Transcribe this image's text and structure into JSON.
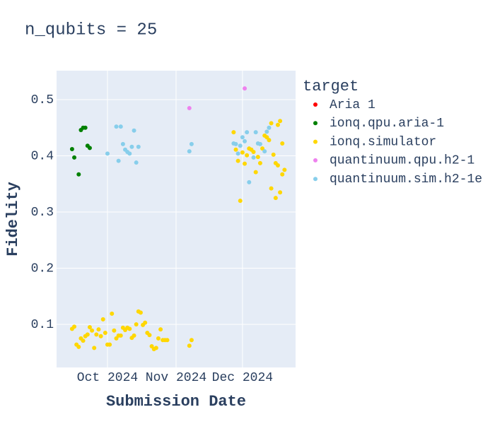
{
  "chart_data": {
    "type": "scatter",
    "title": "n_qubits = 25",
    "x_label": "Submission Date",
    "y_label": "Fidelity",
    "legend_title": "target",
    "legend": "right",
    "grid": true,
    "xlim": [
      "2024-09-08",
      "2024-12-25"
    ],
    "xticks": [
      {
        "value": "2024-10-01",
        "label": "Oct 2024"
      },
      {
        "value": "2024-11-01",
        "label": "Nov 2024"
      },
      {
        "value": "2024-12-01",
        "label": "Dec 2024"
      }
    ],
    "ylim": [
      0.0233,
      0.5516
    ],
    "yticks": [
      0.1,
      0.2,
      0.3,
      0.4,
      0.5
    ],
    "series": [
      {
        "name": "Aria 1",
        "color": "#ff0000",
        "x": [],
        "values": []
      },
      {
        "name": "ionq.qpu.aria-1",
        "color": "#008000",
        "x": [
          "2024-09-15",
          "2024-09-16",
          "2024-09-18",
          "2024-09-19",
          "2024-09-20",
          "2024-09-21",
          "2024-09-22",
          "2024-09-23"
        ],
        "values": [
          0.412,
          0.397,
          0.367,
          0.446,
          0.45,
          0.45,
          0.418,
          0.414
        ]
      },
      {
        "name": "ionq.simulator",
        "color": "#ffd700",
        "x": [
          "2024-09-15",
          "2024-09-16",
          "2024-09-17",
          "2024-09-18",
          "2024-09-19",
          "2024-09-20",
          "2024-09-21",
          "2024-09-22",
          "2024-09-23",
          "2024-09-24",
          "2024-09-25",
          "2024-09-26",
          "2024-09-27",
          "2024-09-28",
          "2024-09-29",
          "2024-09-30",
          "2024-10-01",
          "2024-10-02",
          "2024-10-03",
          "2024-10-04",
          "2024-10-05",
          "2024-10-06",
          "2024-10-07",
          "2024-10-08",
          "2024-10-09",
          "2024-10-10",
          "2024-10-11",
          "2024-10-12",
          "2024-10-13",
          "2024-10-14",
          "2024-10-15",
          "2024-10-16",
          "2024-10-17",
          "2024-10-18",
          "2024-10-19",
          "2024-10-20",
          "2024-10-21",
          "2024-10-22",
          "2024-10-23",
          "2024-10-24",
          "2024-10-25",
          "2024-10-26",
          "2024-10-27",
          "2024-10-28",
          "2024-11-07",
          "2024-11-08",
          "2024-11-27",
          "2024-11-28",
          "2024-11-29",
          "2024-11-30",
          "2024-12-01",
          "2024-12-02",
          "2024-12-03",
          "2024-12-04",
          "2024-12-05",
          "2024-12-06",
          "2024-12-07",
          "2024-12-08",
          "2024-12-09",
          "2024-12-10",
          "2024-12-11",
          "2024-12-12",
          "2024-12-13",
          "2024-12-14",
          "2024-12-14",
          "2024-12-15",
          "2024-12-16",
          "2024-12-16",
          "2024-12-17",
          "2024-12-17",
          "2024-12-18",
          "2024-12-18",
          "2024-12-19",
          "2024-12-19",
          "2024-12-20"
        ],
        "values": [
          0.092,
          0.096,
          0.064,
          0.06,
          0.075,
          0.071,
          0.079,
          0.082,
          0.095,
          0.089,
          0.058,
          0.082,
          0.091,
          0.079,
          0.109,
          0.085,
          0.064,
          0.064,
          0.119,
          0.089,
          0.075,
          0.08,
          0.08,
          0.094,
          0.09,
          0.094,
          0.092,
          0.076,
          0.08,
          0.1,
          0.123,
          0.121,
          0.099,
          0.103,
          0.085,
          0.081,
          0.061,
          0.056,
          0.058,
          0.075,
          0.091,
          0.072,
          0.072,
          0.072,
          0.062,
          0.072,
          0.442,
          0.411,
          0.391,
          0.32,
          0.406,
          0.386,
          0.401,
          0.413,
          0.411,
          0.407,
          0.371,
          0.398,
          0.387,
          0.413,
          0.436,
          0.433,
          0.428,
          0.458,
          0.342,
          0.402,
          0.387,
          0.325,
          0.455,
          0.383,
          0.335,
          0.462,
          0.367,
          0.422,
          0.375
        ]
      },
      {
        "name": "quantinuum.qpu.h2-1",
        "color": "#ee82ee",
        "x": [
          "2024-11-07",
          "2024-12-02"
        ],
        "values": [
          0.485,
          0.52
        ]
      },
      {
        "name": "quantinuum.sim.h2-1e",
        "color": "#87ceeb",
        "x": [
          "2024-10-01",
          "2024-10-05",
          "2024-10-07",
          "2024-10-06",
          "2024-10-08",
          "2024-10-09",
          "2024-10-10",
          "2024-10-11",
          "2024-10-12",
          "2024-10-13",
          "2024-10-14",
          "2024-10-15",
          "2024-11-07",
          "2024-11-08",
          "2024-11-27",
          "2024-11-28",
          "2024-11-29",
          "2024-11-30",
          "2024-12-01",
          "2024-12-02",
          "2024-12-03",
          "2024-12-04",
          "2024-12-06",
          "2024-12-07",
          "2024-12-08",
          "2024-12-09",
          "2024-12-11",
          "2024-12-12",
          "2024-12-13"
        ],
        "values": [
          0.404,
          0.452,
          0.452,
          0.391,
          0.421,
          0.411,
          0.407,
          0.404,
          0.416,
          0.445,
          0.388,
          0.416,
          0.408,
          0.421,
          0.422,
          0.421,
          0.404,
          0.418,
          0.433,
          0.426,
          0.442,
          0.353,
          0.397,
          0.442,
          0.422,
          0.421,
          0.408,
          0.443,
          0.45
        ]
      }
    ]
  }
}
